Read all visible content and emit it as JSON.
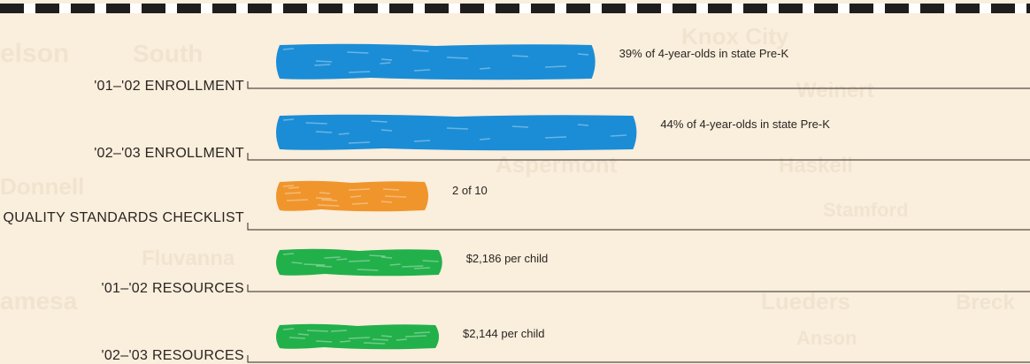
{
  "chart_data": {
    "type": "bar",
    "orientation": "horizontal",
    "categories": [
      "'01–'02 ENROLLMENT",
      "'02–'03 ENROLLMENT",
      "QUALITY STANDARDS CHECKLIST",
      "'01–'02 RESOURCES",
      "'02–'03 RESOURCES"
    ],
    "values": [
      39,
      44,
      2,
      2186,
      2144
    ],
    "units": [
      "percent",
      "percent",
      "of 10",
      "dollars per child",
      "dollars per child"
    ],
    "value_labels": [
      "39% of 4-year-olds in state Pre-K",
      "44% of 4-year-olds in state Pre-K",
      "2 of 10",
      "$2,186 per child",
      "$2,144 per child"
    ],
    "colors": [
      "#1b8dd6",
      "#1b8dd6",
      "#f0952c",
      "#22b04a",
      "#22b04a"
    ],
    "grid": false,
    "legend": "none"
  },
  "colors": {
    "background": "#faeedd",
    "border_dark": "#1e1e1e",
    "border_light": "#ffffff",
    "axis": "#2a2520"
  }
}
